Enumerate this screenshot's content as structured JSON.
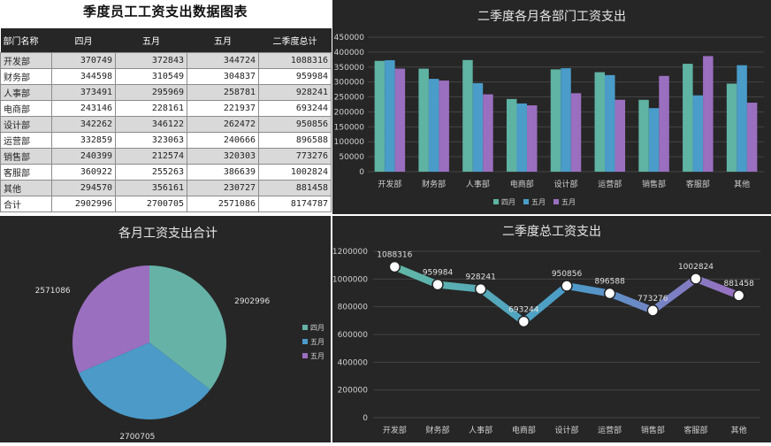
{
  "table": {
    "title": "季度员工工资支出数据图表",
    "headers": [
      "部门名称",
      "四月",
      "五月",
      "五月",
      "二季度总计"
    ],
    "rows": [
      [
        "开发部",
        "370749",
        "372843",
        "344724",
        "1088316"
      ],
      [
        "财务部",
        "344598",
        "310549",
        "304837",
        "959984"
      ],
      [
        "人事部",
        "373491",
        "295969",
        "258781",
        "928241"
      ],
      [
        "电商部",
        "243146",
        "228161",
        "221937",
        "693244"
      ],
      [
        "设计部",
        "342262",
        "346122",
        "262472",
        "950856"
      ],
      [
        "运营部",
        "332859",
        "323063",
        "240666",
        "896588"
      ],
      [
        "销售部",
        "240399",
        "212574",
        "320303",
        "773276"
      ],
      [
        "客服部",
        "360922",
        "255263",
        "386639",
        "1002824"
      ],
      [
        "其他",
        "294570",
        "356161",
        "230727",
        "881458"
      ],
      [
        "合计",
        "2902996",
        "2700705",
        "2571086",
        "8174787"
      ]
    ]
  },
  "chart_data": [
    {
      "type": "bar",
      "title": "二季度各月各部门工资支出",
      "categories": [
        "开发部",
        "财务部",
        "人事部",
        "电商部",
        "设计部",
        "运营部",
        "销售部",
        "客服部",
        "其他"
      ],
      "series": [
        {
          "name": "四月",
          "color": "#5fb3a3",
          "values": [
            370749,
            344598,
            373491,
            243146,
            342262,
            332859,
            240399,
            360922,
            294570
          ]
        },
        {
          "name": "五月",
          "color": "#4a9cc9",
          "values": [
            372843,
            310549,
            295969,
            228161,
            346122,
            323063,
            212574,
            255263,
            356161
          ]
        },
        {
          "name": "五月",
          "color": "#9a6fc0",
          "values": [
            344724,
            304837,
            258781,
            221937,
            262472,
            240666,
            320303,
            386639,
            230727
          ]
        }
      ],
      "yticks": [
        "0",
        "50000",
        "100000",
        "150000",
        "200000",
        "250000",
        "300000",
        "350000",
        "400000",
        "450000"
      ],
      "ylim": [
        0,
        450000
      ],
      "grid": true,
      "legend": "bottom"
    },
    {
      "type": "pie",
      "title": "各月工资支出合计",
      "labels": [
        "四月",
        "五月",
        "五月"
      ],
      "values": [
        2902996,
        2700705,
        2571086
      ],
      "value_labels": [
        "2902996",
        "2700705",
        "2571086"
      ],
      "colors": [
        "#66b2a6",
        "#4b9ac8",
        "#9b6fc0"
      ],
      "legend": "right"
    },
    {
      "type": "line",
      "title": "二季度总工资支出",
      "categories": [
        "开发部",
        "财务部",
        "人事部",
        "电商部",
        "设计部",
        "运营部",
        "销售部",
        "客服部",
        "其他"
      ],
      "values": [
        1088316,
        959984,
        928241,
        693244,
        950856,
        896588,
        773276,
        1002824,
        881458
      ],
      "value_labels": [
        "1088316",
        "959984",
        "928241",
        "693244",
        "950856",
        "896588",
        "773276",
        "1002824",
        "881458"
      ],
      "yticks": [
        "0",
        "200000",
        "400000",
        "600000",
        "800000",
        "1000000",
        "1200000"
      ],
      "ylim": [
        0,
        1200000
      ],
      "grid": true,
      "line_colors": [
        "#62b9a6",
        "#4a9cc9",
        "#9a6fc0"
      ]
    }
  ]
}
